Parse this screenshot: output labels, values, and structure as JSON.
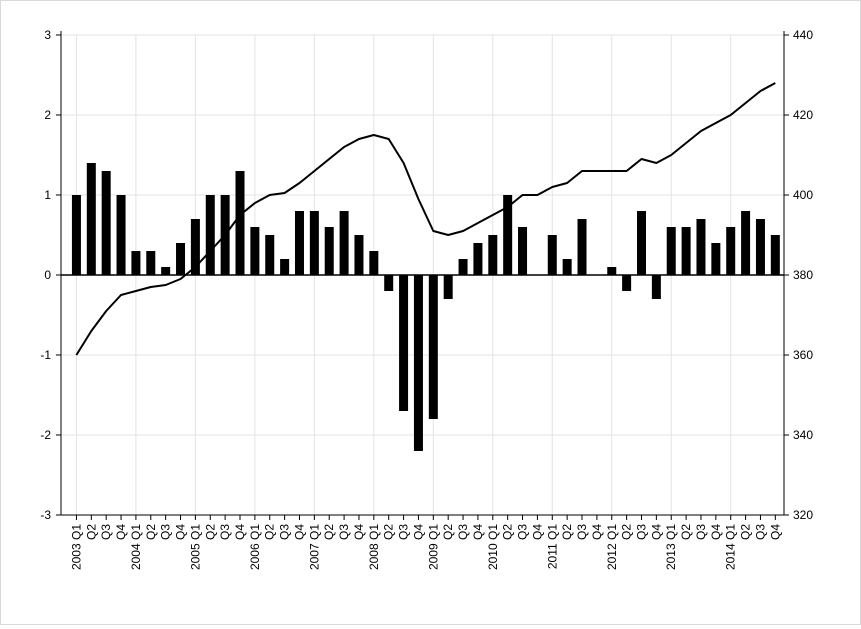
{
  "chart_data": {
    "type": "bar",
    "grid": true,
    "legend": "none",
    "categories": [
      "2003 Q1",
      "Q2",
      "Q3",
      "Q4",
      "2004 Q1",
      "Q2",
      "Q3",
      "Q4",
      "2005 Q1",
      "Q2",
      "Q3",
      "Q4",
      "2006 Q1",
      "Q2",
      "Q3",
      "Q4",
      "2007 Q1",
      "Q2",
      "Q3",
      "Q4",
      "2008 Q1",
      "Q2",
      "Q3",
      "Q4",
      "2009 Q1",
      "Q2",
      "Q3",
      "Q4",
      "2010 Q1",
      "Q2",
      "Q3",
      "Q4",
      "2011 Q1",
      "Q2",
      "Q3",
      "Q4",
      "2012 Q1",
      "Q2",
      "Q3",
      "Q4",
      "2013 Q1",
      "Q2",
      "Q3",
      "Q4",
      "2014 Q1",
      "Q2",
      "Q3",
      "Q4"
    ],
    "series": [
      {
        "type": "bar",
        "axis": "left",
        "color": "#000000",
        "values": [
          1.0,
          1.4,
          1.3,
          1.0,
          0.3,
          0.3,
          0.1,
          0.4,
          0.7,
          1.0,
          1.0,
          1.3,
          0.6,
          0.5,
          0.2,
          0.8,
          0.8,
          0.6,
          0.8,
          0.5,
          0.3,
          -0.2,
          -1.7,
          -2.2,
          -1.8,
          -0.3,
          0.2,
          0.4,
          0.5,
          1.0,
          0.6,
          0.0,
          0.5,
          0.2,
          0.7,
          0.0,
          0.1,
          -0.2,
          0.8,
          -0.3,
          0.6,
          0.6,
          0.7,
          0.4,
          0.6,
          0.8,
          0.7,
          0.5
        ]
      },
      {
        "type": "line",
        "axis": "right",
        "color": "#000000",
        "values": [
          360,
          366,
          371,
          375,
          376,
          377,
          377.5,
          379,
          382,
          386,
          390,
          395,
          398,
          400,
          400.5,
          403,
          406,
          409,
          412,
          414,
          415,
          414,
          408,
          399,
          391,
          390,
          391,
          393,
          395,
          397,
          400,
          400,
          402,
          403,
          406,
          406,
          406,
          406,
          409,
          408,
          410,
          413,
          416,
          418,
          420,
          423,
          426,
          428
        ]
      }
    ],
    "y_left": {
      "min": -3,
      "max": 3,
      "ticks": [
        -3,
        -2,
        -1,
        0,
        1,
        2,
        3
      ]
    },
    "y_right": {
      "min": 320,
      "max": 440,
      "ticks": [
        320,
        340,
        360,
        380,
        400,
        420,
        440
      ]
    }
  }
}
